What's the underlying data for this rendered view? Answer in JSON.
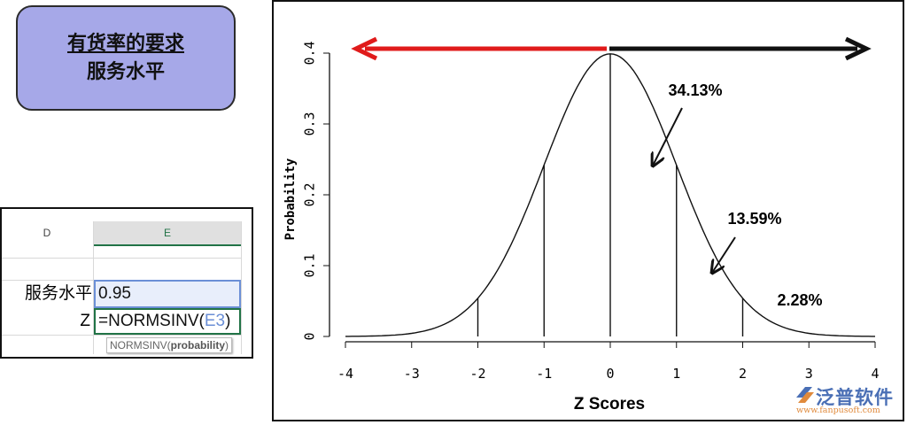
{
  "title_box": {
    "line1": "有货率的要求",
    "line2": "服务水平",
    "fill": "#a6a8e8"
  },
  "spreadsheet": {
    "columns": [
      "D",
      "E"
    ],
    "rows": [
      {
        "label": "服务水平",
        "value": "0.95"
      },
      {
        "label": "Z",
        "formula_prefix": "=NORMSINV(",
        "formula_ref": "E3",
        "formula_suffix": ")"
      }
    ],
    "tooltip": {
      "func": "NORMSINV(",
      "arg": "probability",
      "close": ")"
    }
  },
  "chart_data": {
    "type": "line",
    "xlabel": "Z Scores",
    "ylabel": "Probability",
    "xlim": [
      -4,
      4
    ],
    "ylim": [
      0,
      0.4
    ],
    "xticks": [
      "-4",
      "-3",
      "-2",
      "-1",
      "0",
      "1",
      "2",
      "3",
      "4"
    ],
    "yticks": [
      "0",
      "0.1",
      "0.2",
      "0.3",
      "0.4"
    ],
    "series": [
      {
        "function": "standard normal pdf",
        "color": "#111111"
      }
    ],
    "vertical_lines_at": [
      -2,
      -1,
      0,
      1,
      2
    ],
    "annotations": [
      {
        "text": "34.13%",
        "region": [
          0,
          1
        ]
      },
      {
        "text": "13.59%",
        "region": [
          1,
          2
        ]
      },
      {
        "text": "2.28%",
        "region": [
          2,
          4
        ]
      }
    ],
    "arrows": [
      {
        "direction": "left",
        "color": "#e01b1b"
      },
      {
        "direction": "right",
        "color": "#111111"
      }
    ],
    "grid": false
  },
  "logo": {
    "name": "泛普软件",
    "url": "www.fanpusoft.com"
  }
}
